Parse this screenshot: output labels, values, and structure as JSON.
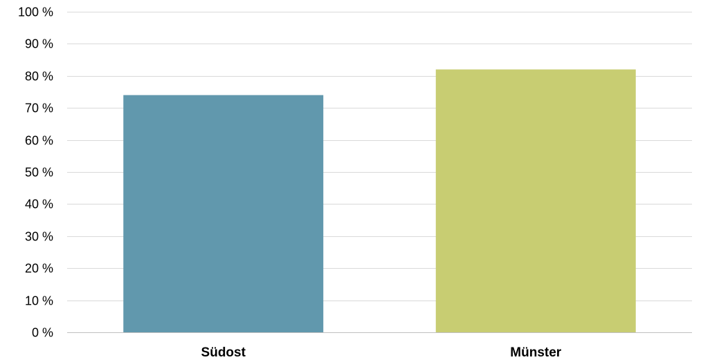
{
  "chart_data": {
    "type": "bar",
    "categories": [
      "Südost",
      "Münster"
    ],
    "values": [
      74,
      82
    ],
    "colors": [
      "#6198ad",
      "#c8cd72"
    ],
    "ylim": [
      0,
      100
    ],
    "yticks": [
      0,
      10,
      20,
      30,
      40,
      50,
      60,
      70,
      80,
      90,
      100
    ],
    "ytick_labels": [
      "0 %",
      "10 %",
      "20 %",
      "30 %",
      "40 %",
      "50 %",
      "60 %",
      "70 %",
      "80 %",
      "90 %",
      "100 %"
    ],
    "grid": true,
    "legend": "none",
    "title": "",
    "xlabel": "",
    "ylabel": ""
  }
}
